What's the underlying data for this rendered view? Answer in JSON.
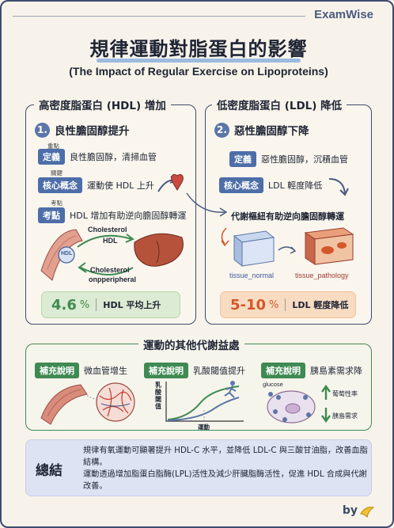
{
  "brand": "ExamWise",
  "title": "規律運動對脂蛋白的影響",
  "subtitle": "(The Impact of Regular Exercise on Lipoproteins)",
  "hdl": {
    "panel_title": "高密度脂蛋白 (HDL) 增加",
    "num": "1.",
    "section_title": "良性膽固醇提升",
    "def_small": "重點",
    "def_tag": "定義",
    "def_text": "良性膽固醇，清掃血管",
    "core_small": "關鍵",
    "core_tag": "核心概念",
    "core_text": "運動使 HDL 上升",
    "exam_small": "考點",
    "exam_tag": "考點",
    "exam_text": "HDL 增加有助逆向膽固醇轉運",
    "diagram": {
      "label_hdl": "HDL",
      "label_chol_top": "Cholesterol",
      "label_hdl2": "HDL",
      "label_chol_bottom": "Cholesterol",
      "label_periph": "onpperipheral"
    },
    "stat_value": "4.6",
    "stat_unit": "%",
    "stat_label": "HDL 平均上升"
  },
  "ldl": {
    "panel_title": "低密度脂蛋白 (LDL) 降低",
    "num": "2.",
    "section_title": "惡性膽固醇下降",
    "def_tag": "定義",
    "def_text": "惡性膽固醇，沉積血管",
    "core_tag": "核心概念",
    "core_text": "LDL 輕度降低",
    "mech_text": "代謝樞紐有助逆向膽固醇轉運",
    "label_normal": "tissue_normal",
    "label_pathology": "tissue_pathology",
    "stat_value": "5-10",
    "stat_unit": "%",
    "stat_label": "LDL 輕度降低"
  },
  "metabolic": {
    "panel_title": "運動的其他代謝益處",
    "item1_tag": "補充說明",
    "item1_text": "微血管增生",
    "item2_tag": "補充說明",
    "item2_text": "乳酸閾值提升",
    "item2_ylabel": "乳酸閾值",
    "item2_xlabel": "運動",
    "item3_tag": "補充說明",
    "item3_text": "胰島素需求降",
    "item3_glucose": "glucose",
    "item3_up": "葡萄性率",
    "item3_down": "胰島需求"
  },
  "summary": {
    "label": "總結",
    "line1": "規律有氧運動可顯著提升 HDL-C 水平，並降低 LDL-C 與三酸甘油脂，改善血脂結構。",
    "line2": "運動透過增加脂蛋白脂酶(LPL)活性及減少肝臟脂酶活性，促進 HDL 合成與代謝改善。"
  },
  "footer_by": "by",
  "colors": {
    "navy": "#3d4a6b",
    "blue_tag": "#4d6ea8",
    "green_tag": "#3f8a52",
    "green_stat": "#3f8a52",
    "orange_stat": "#d4572a"
  }
}
